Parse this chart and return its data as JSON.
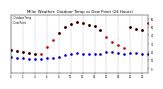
{
  "title": "Milw. Weather: Outdoor Temp vs Dew Point (24 Hours)",
  "background_color": "#ffffff",
  "grid_color": "#aaaaaa",
  "temp_color": "#cc0000",
  "dew_color": "#0000cc",
  "black_color": "#000000",
  "hours": [
    0,
    1,
    2,
    3,
    4,
    5,
    6,
    7,
    8,
    9,
    10,
    11,
    12,
    13,
    14,
    15,
    16,
    17,
    18,
    19,
    20,
    21,
    22,
    23
  ],
  "temp": [
    22,
    21,
    20,
    19,
    18,
    18,
    26,
    35,
    43,
    50,
    54,
    56,
    55,
    53,
    51,
    46,
    38,
    32,
    28,
    25,
    50,
    48,
    47,
    55
  ],
  "dew": [
    14,
    13,
    13,
    12,
    12,
    12,
    13,
    13,
    14,
    17,
    18,
    19,
    18,
    18,
    18,
    18,
    20,
    20,
    19,
    18,
    19,
    19,
    18,
    18
  ],
  "black_x": [
    0,
    1,
    2,
    3,
    4,
    8,
    9,
    10,
    11,
    12,
    13,
    14,
    15,
    20,
    21,
    22
  ],
  "black_y": [
    22,
    21,
    20,
    19,
    18,
    43,
    50,
    54,
    56,
    55,
    53,
    51,
    46,
    50,
    48,
    47
  ],
  "ylim": [
    -5,
    65
  ],
  "xlim": [
    0,
    23
  ],
  "tick_hours": [
    0,
    2,
    4,
    6,
    8,
    10,
    12,
    14,
    16,
    18,
    20,
    22
  ],
  "tick_labels": [
    "0",
    "2",
    "4",
    "6",
    "8",
    "10",
    "12",
    "14",
    "16",
    "18",
    "20",
    "22"
  ],
  "ytick_vals": [
    0,
    10,
    20,
    30,
    40,
    50,
    60
  ],
  "title_fontsize": 2.8
}
